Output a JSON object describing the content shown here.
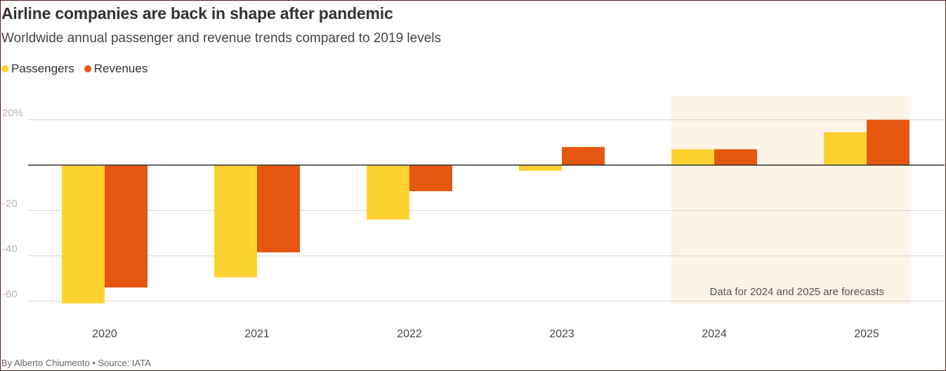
{
  "header": {
    "title": "Airline companies are back in shape after pandemic",
    "subtitle": "Worldwide annual passenger and revenue trends compared to 2019 levels"
  },
  "footer": {
    "credit": "By Alberto Chiumento • Source: IATA"
  },
  "colors": {
    "passengers": "#fdd230",
    "revenues": "#e5560f",
    "forecast_band": "#fdf3e6",
    "gridline": "#d6d6d6",
    "zero_line": "#333333"
  },
  "chart_data": {
    "type": "bar",
    "title": "Airline companies are back in shape after pandemic",
    "subtitle": "Worldwide annual passenger and revenue trends compared to 2019 levels",
    "categories": [
      "2020",
      "2021",
      "2022",
      "2023",
      "2024",
      "2025"
    ],
    "series": [
      {
        "name": "Passengers",
        "values": [
          -61,
          -49.5,
          -24,
          -2.5,
          7,
          14.5
        ]
      },
      {
        "name": "Revenues",
        "values": [
          -54,
          -38.5,
          -11.5,
          8,
          7,
          20
        ]
      }
    ],
    "yticks": [
      {
        "value": 20,
        "label": "20%"
      },
      {
        "value": -20,
        "label": "-20"
      },
      {
        "value": -40,
        "label": "-40"
      },
      {
        "value": -60,
        "label": "-60"
      }
    ],
    "ylim": [
      -62,
      30
    ],
    "grid": true,
    "legend_position": "top-left",
    "forecast_categories": [
      "2024",
      "2025"
    ],
    "annotation": "Data for 2024 and 2025 are forecasts"
  }
}
